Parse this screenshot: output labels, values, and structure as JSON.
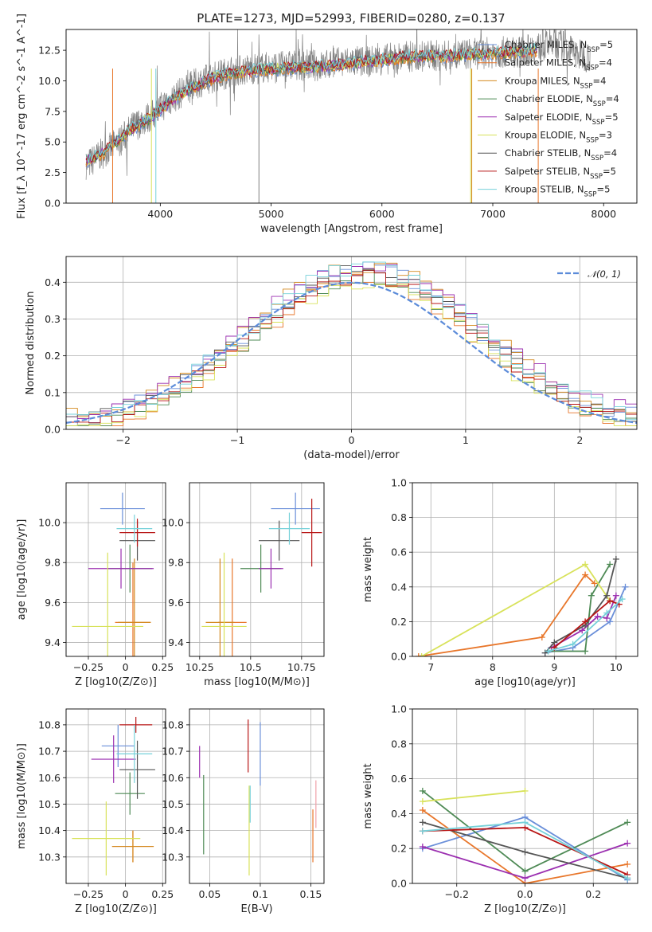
{
  "title": "PLATE=1273, MJD=52993, FIBERID=0280, z=0.137",
  "colors": {
    "chabrier_miles": "#6a8fd9",
    "salpeter_miles": "#e8762a",
    "kroupa_miles": "#d4891f",
    "chabrier_elodie": "#4e8a55",
    "salpeter_elodie": "#9b2fb0",
    "kroupa_elodie": "#d8e25a",
    "chabrier_stelib": "#555555",
    "salpeter_stelib": "#b81616",
    "kroupa_stelib": "#76d1d9",
    "gaussian": "#5b8bd9",
    "data_spectrum": "#808080"
  },
  "legend_spectrum": [
    {
      "label": "Chabrier MILES, N",
      "sub": "SSP",
      "tail": "=5",
      "color": "#6a8fd9"
    },
    {
      "label": "Salpeter MILES, N",
      "sub": "SSP",
      "tail": "=4",
      "color": "#e8762a"
    },
    {
      "label": "Kroupa MILES, N",
      "sub": "SSP",
      "tail": "=4",
      "color": "#d4891f"
    },
    {
      "label": "Chabrier ELODIE, N",
      "sub": "SSP",
      "tail": "=4",
      "color": "#4e8a55"
    },
    {
      "label": "Salpeter ELODIE, N",
      "sub": "SSP",
      "tail": "=5",
      "color": "#9b2fb0"
    },
    {
      "label": "Kroupa ELODIE, N",
      "sub": "SSP",
      "tail": "=3",
      "color": "#d8e25a"
    },
    {
      "label": "Chabrier STELIB, N",
      "sub": "SSP",
      "tail": "=4",
      "color": "#555555"
    },
    {
      "label": "Salpeter STELIB, N",
      "sub": "SSP",
      "tail": "=5",
      "color": "#b81616"
    },
    {
      "label": "Kroupa STELIB, N",
      "sub": "SSP",
      "tail": "=5",
      "color": "#76d1d9"
    }
  ],
  "legend_hist": "𝒩(0, 1)",
  "chart_data": [
    {
      "id": "spectrum",
      "type": "line",
      "xlabel": "wavelength [Angstrom, rest frame]",
      "ylabel": "Flux [f_λ 10^-17 erg cm^-2 s^-1 A^-1]",
      "xlim": [
        3150,
        8300
      ],
      "ylim": [
        0,
        14.2
      ],
      "xticks": [
        4000,
        5000,
        6000,
        7000,
        8000
      ],
      "yticks": [
        0.0,
        2.5,
        5.0,
        7.5,
        10.0,
        12.5
      ],
      "observed": {
        "x": [
          3350,
          3450,
          3550,
          3650,
          3750,
          3850,
          3950,
          4050,
          4150,
          4250,
          4350,
          4450,
          4550,
          4650,
          4750,
          4850,
          4950,
          5050,
          5150,
          5250,
          5350,
          5450,
          5550,
          5650,
          5750,
          5850,
          5950,
          6050,
          6150,
          6250,
          6350,
          6450,
          6550,
          6650,
          6750,
          6850,
          6950,
          7050,
          7150,
          7250,
          7350,
          7450,
          7550,
          7650,
          7750,
          7850
        ],
        "y": [
          3.2,
          3.9,
          4.5,
          5.2,
          6.2,
          6.8,
          7.3,
          8.2,
          8.8,
          9.4,
          9.9,
          10.2,
          10.5,
          10.8,
          10.9,
          11.0,
          11.1,
          11.1,
          11.2,
          11.3,
          11.3,
          11.2,
          11.4,
          11.5,
          11.6,
          11.5,
          11.7,
          11.8,
          11.9,
          12.0,
          12.0,
          12.1,
          12.0,
          12.1,
          12.2,
          12.2,
          12.3,
          12.3,
          12.4,
          12.4,
          12.6,
          12.8,
          13.2,
          12.8,
          12.2,
          12.0
        ]
      },
      "model": {
        "x": [
          3350,
          3500,
          3700,
          3900,
          4100,
          4300,
          4500,
          4700,
          4900,
          5100,
          5300,
          5500,
          5700,
          5900,
          6100,
          6300,
          6500,
          6700,
          6900,
          7100,
          7300,
          7400
        ],
        "y": [
          3.5,
          4.2,
          5.8,
          6.9,
          8.4,
          9.5,
          10.3,
          10.7,
          10.9,
          11.0,
          11.1,
          11.2,
          11.4,
          11.6,
          11.8,
          12.0,
          12.0,
          12.1,
          12.2,
          12.3,
          12.4,
          12.5
        ]
      }
    },
    {
      "id": "residual_hist",
      "type": "line",
      "xlabel": "(data-model)/error",
      "ylabel": "Normed distribution",
      "xlim": [
        -2.5,
        2.5
      ],
      "ylim": [
        0,
        0.47
      ],
      "xticks": [
        -2,
        -1,
        0,
        1,
        2
      ],
      "yticks": [
        0.0,
        0.1,
        0.2,
        0.3,
        0.4
      ],
      "series": [
        {
          "color": "#6a8fd9",
          "offset": 0.012
        },
        {
          "color": "#e8762a",
          "offset": -0.018
        },
        {
          "color": "#d4891f",
          "offset": 0.02
        },
        {
          "color": "#4e8a55",
          "offset": -0.01
        },
        {
          "color": "#9b2fb0",
          "offset": 0.025
        },
        {
          "color": "#d8e25a",
          "offset": -0.022
        },
        {
          "color": "#555555",
          "offset": 0.006
        },
        {
          "color": "#b81616",
          "offset": -0.006
        },
        {
          "color": "#76d1d9",
          "offset": 0.016
        }
      ]
    },
    {
      "id": "z_age",
      "type": "scatter",
      "xlabel": "Z [log10(Z/Z⊙)]",
      "ylabel": "age [log10(age/yr)]",
      "xlim": [
        -0.4,
        0.27
      ],
      "ylim": [
        9.33,
        10.2
      ],
      "xticks": [
        -0.25,
        0.0,
        0.25
      ],
      "yticks": [
        9.4,
        9.6,
        9.8,
        10.0
      ],
      "points": [
        {
          "x": -0.02,
          "y": 10.07,
          "xerr": 0.15,
          "yerr": 0.08,
          "color": "#6a8fd9"
        },
        {
          "x": 0.05,
          "y": 9.5,
          "xerr": 0.12,
          "yerr": 0.3,
          "color": "#e8762a"
        },
        {
          "x": 0.06,
          "y": 9.5,
          "xerr": 0.11,
          "yerr": 0.32,
          "color": "#d4891f"
        },
        {
          "x": 0.03,
          "y": 9.77,
          "xerr": 0.15,
          "yerr": 0.12,
          "color": "#4e8a55"
        },
        {
          "x": -0.03,
          "y": 9.77,
          "xerr": 0.22,
          "yerr": 0.1,
          "color": "#9b2fb0"
        },
        {
          "x": -0.12,
          "y": 9.48,
          "xerr": 0.24,
          "yerr": 0.37,
          "color": "#d8e25a"
        },
        {
          "x": 0.08,
          "y": 9.91,
          "xerr": 0.12,
          "yerr": 0.1,
          "color": "#555555"
        },
        {
          "x": 0.08,
          "y": 9.95,
          "xerr": 0.12,
          "yerr": 0.07,
          "color": "#b81616"
        },
        {
          "x": 0.06,
          "y": 9.97,
          "xerr": 0.12,
          "yerr": 0.07,
          "color": "#76d1d9"
        }
      ]
    },
    {
      "id": "mass_age",
      "type": "scatter",
      "xlabel": "mass [log10(M/M⊙)]",
      "ylabel": "",
      "xlim": [
        10.2,
        10.86
      ],
      "ylim": [
        9.33,
        10.2
      ],
      "xticks": [
        10.25,
        10.5,
        10.75
      ],
      "yticks": [
        9.4,
        9.6,
        9.8,
        10.0
      ],
      "points": [
        {
          "x": 10.72,
          "y": 10.07,
          "xerr": 0.12,
          "yerr": 0.08,
          "color": "#6a8fd9"
        },
        {
          "x": 10.41,
          "y": 9.5,
          "xerr": 0.07,
          "yerr": 0.32,
          "color": "#e8762a"
        },
        {
          "x": 10.35,
          "y": 9.5,
          "xerr": 0.07,
          "yerr": 0.32,
          "color": "#d4891f"
        },
        {
          "x": 10.55,
          "y": 9.77,
          "xerr": 0.1,
          "yerr": 0.12,
          "color": "#4e8a55"
        },
        {
          "x": 10.6,
          "y": 9.77,
          "xerr": 0.06,
          "yerr": 0.1,
          "color": "#9b2fb0"
        },
        {
          "x": 10.37,
          "y": 9.48,
          "xerr": 0.11,
          "yerr": 0.37,
          "color": "#d8e25a"
        },
        {
          "x": 10.64,
          "y": 9.91,
          "xerr": 0.1,
          "yerr": 0.1,
          "color": "#555555"
        },
        {
          "x": 10.8,
          "y": 9.95,
          "xerr": 0.05,
          "yerr": 0.17,
          "color": "#b81616"
        },
        {
          "x": 10.69,
          "y": 9.97,
          "xerr": 0.1,
          "yerr": 0.08,
          "color": "#76d1d9"
        }
      ]
    },
    {
      "id": "age_weight",
      "type": "line",
      "xlabel": "age [log10(age/yr)]",
      "ylabel": "mass weight",
      "xlim": [
        6.7,
        10.35
      ],
      "ylim": [
        0,
        1.0
      ],
      "xticks": [
        7,
        8,
        9,
        10
      ],
      "yticks": [
        0.0,
        0.2,
        0.4,
        0.6,
        0.8,
        1.0
      ],
      "series": [
        {
          "color": "#6a8fd9",
          "x": [
            8.85,
            9.3,
            9.9,
            10.15
          ],
          "y": [
            0.02,
            0.05,
            0.2,
            0.4
          ]
        },
        {
          "color": "#e8762a",
          "x": [
            6.8,
            8.8,
            9.5,
            9.65
          ],
          "y": [
            0.0,
            0.11,
            0.47,
            0.42
          ]
        },
        {
          "color": "#4e8a55",
          "x": [
            8.9,
            9.5,
            9.6,
            9.9
          ],
          "y": [
            0.03,
            0.03,
            0.35,
            0.53
          ]
        },
        {
          "color": "#9b2fb0",
          "x": [
            8.95,
            9.45,
            9.7,
            9.85,
            10.0
          ],
          "y": [
            0.05,
            0.15,
            0.23,
            0.22,
            0.35
          ]
        },
        {
          "color": "#d8e25a",
          "x": [
            6.85,
            9.5,
            9.9
          ],
          "y": [
            0.0,
            0.53,
            0.32
          ]
        },
        {
          "color": "#555555",
          "x": [
            8.85,
            9.0,
            9.5,
            9.85,
            10.0
          ],
          "y": [
            0.02,
            0.08,
            0.18,
            0.35,
            0.56
          ]
        },
        {
          "color": "#b81616",
          "x": [
            9.0,
            9.5,
            9.9,
            10.05
          ],
          "y": [
            0.05,
            0.2,
            0.32,
            0.3
          ]
        },
        {
          "color": "#76d1d9",
          "x": [
            8.9,
            9.3,
            9.85,
            10.1
          ],
          "y": [
            0.03,
            0.07,
            0.25,
            0.33
          ]
        }
      ]
    },
    {
      "id": "z_mass",
      "type": "scatter",
      "xlabel": "Z [log10(Z/Z⊙)]",
      "ylabel": "mass [log10(M/M⊙)]",
      "xlim": [
        -0.4,
        0.27
      ],
      "ylim": [
        10.2,
        10.86
      ],
      "xticks": [
        -0.25,
        0.0,
        0.25
      ],
      "yticks": [
        10.3,
        10.4,
        10.5,
        10.6,
        10.7,
        10.8
      ],
      "points": [
        {
          "x": -0.05,
          "y": 10.72,
          "xerr": 0.11,
          "yerr": 0.08,
          "color": "#6a8fd9"
        },
        {
          "x": 0.05,
          "y": 10.34,
          "xerr": 0.14,
          "yerr": 0.06,
          "color": "#e8762a"
        },
        {
          "x": 0.05,
          "y": 10.34,
          "xerr": 0.14,
          "yerr": 0.06,
          "color": "#d4891f"
        },
        {
          "x": 0.03,
          "y": 10.54,
          "xerr": 0.1,
          "yerr": 0.08,
          "color": "#4e8a55"
        },
        {
          "x": -0.08,
          "y": 10.67,
          "xerr": 0.15,
          "yerr": 0.09,
          "color": "#9b2fb0"
        },
        {
          "x": -0.13,
          "y": 10.37,
          "xerr": 0.23,
          "yerr": 0.14,
          "color": "#d8e25a"
        },
        {
          "x": 0.08,
          "y": 10.63,
          "xerr": 0.12,
          "yerr": 0.11,
          "color": "#555555"
        },
        {
          "x": 0.07,
          "y": 10.8,
          "xerr": 0.11,
          "yerr": 0.03,
          "color": "#b81616"
        },
        {
          "x": 0.06,
          "y": 10.69,
          "xerr": 0.12,
          "yerr": 0.11,
          "color": "#76d1d9"
        }
      ]
    },
    {
      "id": "ebv_mass",
      "type": "scatter",
      "xlabel": "E(B-V)",
      "ylabel": "",
      "xlim": [
        0.03,
        0.163
      ],
      "ylim": [
        10.2,
        10.86
      ],
      "xticks": [
        0.05,
        0.1,
        0.15
      ],
      "yticks": [
        10.3,
        10.4,
        10.5,
        10.6,
        10.7,
        10.8
      ],
      "points": [
        {
          "x": 0.1,
          "y": 10.69,
          "yerr": 0.12,
          "color": "#6a8fd9"
        },
        {
          "x": 0.152,
          "y": 10.38,
          "yerr": 0.1,
          "color": "#e8762a"
        },
        {
          "x": 0.044,
          "y": 10.46,
          "yerr": 0.15,
          "color": "#4e8a55"
        },
        {
          "x": 0.04,
          "y": 10.66,
          "yerr": 0.06,
          "color": "#9b2fb0"
        },
        {
          "x": 0.089,
          "y": 10.4,
          "yerr": 0.17,
          "color": "#d8e25a"
        },
        {
          "x": 0.088,
          "y": 10.72,
          "yerr": 0.1,
          "color": "#b81616"
        },
        {
          "x": 0.09,
          "y": 10.5,
          "yerr": 0.07,
          "color": "#76d1d9"
        },
        {
          "x": 0.155,
          "y": 10.5,
          "yerr": 0.09,
          "color": "#f0a0a8"
        }
      ]
    },
    {
      "id": "z_weight",
      "type": "line",
      "xlabel": "Z [log10(Z/Z⊙)]",
      "ylabel": "mass weight",
      "xlim": [
        -0.33,
        0.33
      ],
      "ylim": [
        0,
        1.0
      ],
      "xticks": [
        -0.2,
        0.0,
        0.2
      ],
      "yticks": [
        0.0,
        0.2,
        0.4,
        0.6,
        0.8,
        1.0
      ],
      "series": [
        {
          "color": "#6a8fd9",
          "x": [
            -0.3,
            0.0,
            0.3
          ],
          "y": [
            0.2,
            0.38,
            0.02
          ]
        },
        {
          "color": "#e8762a",
          "x": [
            -0.3,
            0.0,
            0.3
          ],
          "y": [
            0.42,
            0.0,
            0.11
          ]
        },
        {
          "color": "#4e8a55",
          "x": [
            -0.3,
            0.0,
            0.3
          ],
          "y": [
            0.53,
            0.07,
            0.35
          ]
        },
        {
          "color": "#9b2fb0",
          "x": [
            -0.3,
            0.0,
            0.3
          ],
          "y": [
            0.21,
            0.03,
            0.23
          ]
        },
        {
          "color": "#d8e25a",
          "x": [
            -0.3,
            0.0
          ],
          "y": [
            0.47,
            0.53
          ]
        },
        {
          "color": "#555555",
          "x": [
            -0.3,
            0.0,
            0.3
          ],
          "y": [
            0.35,
            0.18,
            0.03
          ]
        },
        {
          "color": "#b81616",
          "x": [
            -0.3,
            0.0,
            0.3
          ],
          "y": [
            0.3,
            0.32,
            0.05
          ]
        },
        {
          "color": "#76d1d9",
          "x": [
            -0.3,
            0.0,
            0.3
          ],
          "y": [
            0.3,
            0.35,
            0.03
          ]
        }
      ]
    }
  ]
}
